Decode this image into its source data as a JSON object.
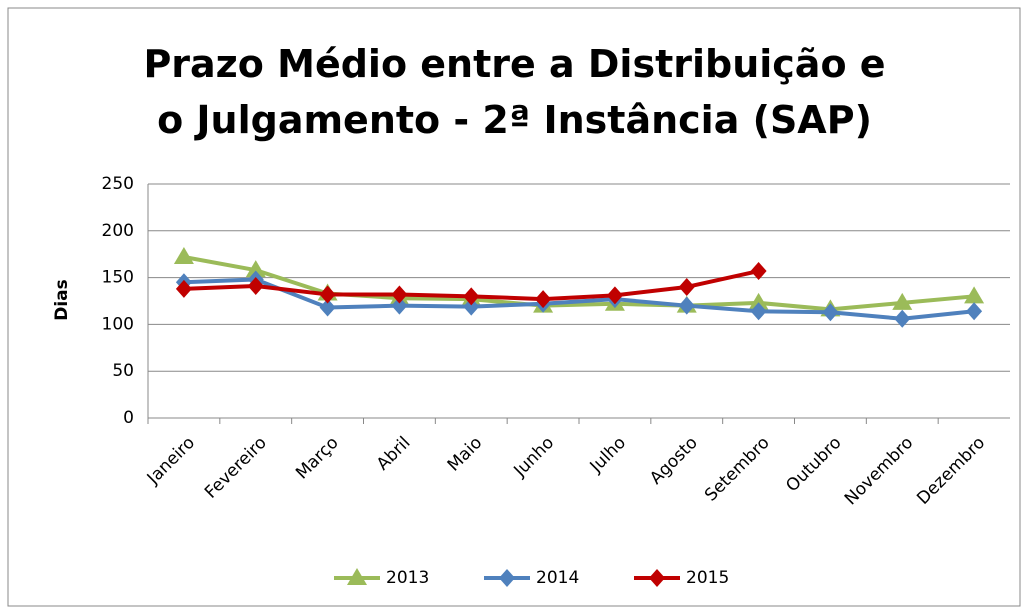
{
  "chart_data": {
    "type": "line",
    "title": "Prazo Médio entre a Distribuição e o Julgamento - 2ª Instância (SAP)",
    "y_label": "Dias",
    "categories": [
      "Janeiro",
      "Fevereiro",
      "Março",
      "Abril",
      "Maio",
      "Junho",
      "Julho",
      "Agosto",
      "Setembro",
      "Outubro",
      "Novembro",
      "Dezembro"
    ],
    "series": [
      {
        "name": "2013",
        "color": "#9bbb59",
        "marker": "triangle",
        "values": [
          172,
          158,
          133,
          128,
          127,
          120,
          122,
          120,
          123,
          116,
          123,
          130
        ]
      },
      {
        "name": "2014",
        "color": "#4f81bd",
        "marker": "diamond",
        "values": [
          145,
          148,
          118,
          120,
          119,
          122,
          127,
          120,
          114,
          113,
          106,
          114
        ]
      },
      {
        "name": "2015",
        "color": "#c00000",
        "marker": "diamond",
        "values": [
          138,
          141,
          132,
          132,
          130,
          127,
          131,
          140,
          157,
          null,
          null,
          null
        ]
      }
    ],
    "ylim": [
      0,
      250
    ],
    "yticks": [
      0,
      50,
      100,
      150,
      200,
      250
    ],
    "grid": true,
    "legend": "bottom"
  }
}
